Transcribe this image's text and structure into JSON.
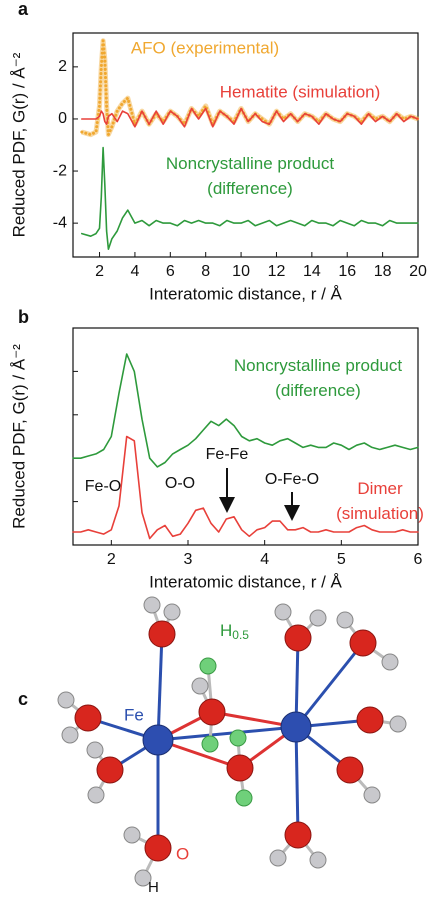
{
  "chart_data": [
    {
      "type": "line",
      "panel": "a",
      "ylabel": "Reduced PDF, G(r) / Å⁻²",
      "xlabel": "Interatomic distance, r / Å",
      "xlim": [
        0.5,
        20
      ],
      "xticks": [
        2,
        4,
        6,
        8,
        10,
        12,
        14,
        16,
        18,
        20
      ],
      "ylim": [
        -5.3,
        3.3
      ],
      "yticks": [
        -4,
        -2,
        0,
        2
      ],
      "x": [
        1,
        1.5,
        1.8,
        2.0,
        2.1,
        2.2,
        2.3,
        2.4,
        2.5,
        2.7,
        3.0,
        3.3,
        3.6,
        4.0,
        4.4,
        4.8,
        5.2,
        5.6,
        6.0,
        6.4,
        6.8,
        7.2,
        7.6,
        8.0,
        8.4,
        8.8,
        9.2,
        9.6,
        10,
        10.4,
        10.8,
        11.2,
        11.6,
        12,
        12.4,
        12.8,
        13.2,
        13.6,
        14,
        14.4,
        14.8,
        15.2,
        15.6,
        16,
        16.4,
        16.8,
        17.2,
        17.6,
        18,
        18.4,
        18.8,
        19.2,
        19.6,
        20
      ],
      "series": [
        {
          "name": "AFO (experimental)",
          "color": "#f0a830",
          "style": "dotted",
          "values": [
            -0.5,
            -0.6,
            -0.5,
            0.5,
            2.0,
            3.0,
            2.3,
            0.5,
            -0.6,
            -0.3,
            0.3,
            0.6,
            0.8,
            -0.2,
            0.3,
            -0.2,
            0.2,
            -0.1,
            0.3,
            0.1,
            -0.2,
            0.4,
            0.1,
            0.5,
            -0.2,
            0.3,
            0.1,
            -0.1,
            0.4,
            -0.1,
            0.2,
            0.0,
            -0.2,
            0.3,
            0.0,
            0.2,
            -0.1,
            0.2,
            0.1,
            -0.1,
            0.2,
            0.0,
            -0.1,
            0.2,
            0.1,
            -0.1,
            0.2,
            0.0,
            0.1,
            -0.1,
            0.2,
            0.0,
            0.1,
            0.0
          ]
        },
        {
          "name": "Hematite (simulation)",
          "color": "#e8403a",
          "style": "solid",
          "values": [
            0,
            0,
            0,
            0.1,
            0.3,
            0.2,
            -0.1,
            -0.2,
            0.1,
            0.2,
            -0.1,
            0.3,
            0.2,
            -0.3,
            0.3,
            -0.2,
            0.3,
            -0.2,
            0.3,
            0.1,
            -0.3,
            0.4,
            0.0,
            0.4,
            -0.3,
            0.3,
            0.1,
            -0.2,
            0.4,
            -0.1,
            0.2,
            -0.1,
            -0.2,
            0.3,
            -0.1,
            0.2,
            -0.1,
            0.2,
            0.1,
            -0.2,
            0.2,
            0.0,
            -0.1,
            0.2,
            0.1,
            -0.2,
            0.2,
            -0.1,
            0.1,
            -0.1,
            0.2,
            -0.1,
            0.1,
            0.0
          ]
        },
        {
          "name": "Noncrystalline product (difference)",
          "color": "#2e9a3c",
          "style": "solid",
          "values": [
            -4.4,
            -4.5,
            -4.4,
            -4.2,
            -3,
            -1.1,
            -2.5,
            -4.3,
            -5.0,
            -4.6,
            -4.3,
            -3.8,
            -3.5,
            -4.0,
            -3.9,
            -4.1,
            -3.9,
            -4.0,
            -4.0,
            -4.1,
            -3.9,
            -4.0,
            -3.9,
            -4.0,
            -4.0,
            -4.1,
            -3.9,
            -4.0,
            -4.0,
            -3.9,
            -4.1,
            -4.0,
            -3.9,
            -4.1,
            -4.0,
            -3.9,
            -4.0,
            -4.1,
            -3.9,
            -4.0,
            -4.0,
            -4.1,
            -3.9,
            -4.0,
            -4.1,
            -3.9,
            -4.0,
            -4.0,
            -4.1,
            -3.9,
            -4.0,
            -4.0,
            -4.0,
            -4.0
          ]
        }
      ]
    },
    {
      "type": "line",
      "panel": "b",
      "ylabel": "Reduced PDF, G(r) / Å⁻²",
      "xlabel": "Interatomic distance, r / Å",
      "xlim": [
        1.5,
        6
      ],
      "xticks": [
        2,
        3,
        4,
        5,
        6
      ],
      "ylim": [
        0,
        10
      ],
      "x": [
        1.5,
        1.6,
        1.7,
        1.8,
        1.9,
        2.0,
        2.1,
        2.2,
        2.3,
        2.4,
        2.5,
        2.6,
        2.7,
        2.8,
        2.9,
        3.0,
        3.1,
        3.2,
        3.3,
        3.4,
        3.5,
        3.6,
        3.7,
        3.8,
        3.9,
        4.0,
        4.1,
        4.2,
        4.3,
        4.4,
        4.5,
        4.6,
        4.7,
        4.8,
        4.9,
        5.0,
        5.1,
        5.2,
        5.3,
        5.4,
        5.5,
        5.6,
        5.7,
        5.8,
        5.9,
        6.0
      ],
      "series": [
        {
          "name": "Noncrystalline product (difference)",
          "color": "#2e9a3c",
          "style": "solid",
          "values": [
            4.0,
            4.0,
            4.1,
            4.2,
            4.4,
            5.0,
            7.0,
            8.8,
            8.0,
            5.8,
            4.0,
            3.6,
            3.8,
            4.2,
            4.4,
            4.6,
            4.9,
            5.3,
            5.7,
            5.5,
            5.8,
            5.5,
            5.0,
            4.8,
            4.9,
            4.7,
            4.6,
            4.8,
            4.9,
            4.7,
            4.5,
            4.6,
            4.5,
            4.5,
            4.7,
            4.6,
            4.4,
            4.6,
            4.7,
            4.5,
            4.4,
            4.5,
            4.6,
            4.5,
            4.4,
            4.5
          ]
        },
        {
          "name": "Dimer (simulation)",
          "color": "#e8403a",
          "style": "solid",
          "values": [
            0.6,
            0.6,
            0.7,
            0.6,
            0.5,
            0.7,
            1.8,
            5.0,
            4.8,
            1.5,
            0.3,
            0.7,
            0.9,
            0.4,
            0.5,
            1.0,
            1.6,
            1.7,
            1.0,
            0.6,
            1.2,
            1.3,
            0.7,
            0.4,
            0.7,
            0.8,
            1.1,
            1.1,
            0.7,
            0.7,
            0.8,
            0.6,
            0.6,
            0.7,
            0.6,
            0.6,
            0.6,
            0.8,
            0.9,
            0.7,
            0.6,
            0.6,
            0.6,
            0.7,
            0.6,
            0.6
          ]
        }
      ],
      "annotations": [
        "Fe-O",
        "O-O",
        "Fe-Fe",
        "O-Fe-O"
      ]
    }
  ],
  "diagram": {
    "panel": "c",
    "fe": "Fe",
    "o": "O",
    "h": "H",
    "h_half": {
      "text": "H",
      "subscript": "0.5"
    }
  }
}
